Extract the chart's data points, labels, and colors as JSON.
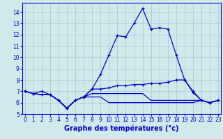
{
  "x": [
    0,
    1,
    2,
    3,
    4,
    5,
    6,
    7,
    8,
    9,
    10,
    11,
    12,
    13,
    14,
    15,
    16,
    17,
    18,
    19,
    20,
    21,
    22,
    23
  ],
  "line1": [
    7.0,
    6.8,
    7.0,
    6.7,
    6.2,
    5.5,
    6.2,
    6.5,
    7.2,
    8.5,
    10.2,
    11.9,
    11.8,
    13.0,
    14.3,
    12.5,
    12.6,
    12.5,
    10.2,
    8.0,
    6.9,
    6.2,
    6.0,
    6.2
  ],
  "line2": [
    7.0,
    6.8,
    6.7,
    6.7,
    6.2,
    5.5,
    6.2,
    6.5,
    7.2,
    7.2,
    7.3,
    7.5,
    7.5,
    7.6,
    7.6,
    7.7,
    7.7,
    7.8,
    8.0,
    8.0,
    7.0,
    6.2,
    6.0,
    6.2
  ],
  "line3": [
    7.0,
    6.8,
    6.7,
    6.7,
    6.2,
    5.5,
    6.2,
    6.5,
    6.8,
    6.8,
    6.8,
    6.8,
    6.8,
    6.8,
    6.8,
    6.2,
    6.2,
    6.2,
    6.2,
    6.2,
    6.2,
    6.2,
    6.0,
    6.2
  ],
  "line4": [
    7.0,
    6.8,
    6.7,
    6.7,
    6.2,
    5.5,
    6.2,
    6.5,
    6.5,
    6.5,
    6.0,
    6.0,
    6.0,
    6.0,
    6.0,
    6.0,
    6.0,
    6.0,
    6.0,
    6.0,
    6.0,
    6.2,
    6.0,
    6.2
  ],
  "bg_color": "#d0eaec",
  "grid_color": "#a0c8cc",
  "line_color": "#0000cc",
  "xlabel": "Graphe des températures (°c)",
  "xlabel_fontsize": 7,
  "ylim": [
    5,
    14.8
  ],
  "xlim": [
    -0.3,
    23.3
  ],
  "yticks": [
    5,
    6,
    7,
    8,
    9,
    10,
    11,
    12,
    13,
    14
  ],
  "xticks": [
    0,
    1,
    2,
    3,
    4,
    5,
    6,
    7,
    8,
    9,
    10,
    11,
    12,
    13,
    14,
    15,
    16,
    17,
    18,
    19,
    20,
    21,
    22,
    23
  ]
}
